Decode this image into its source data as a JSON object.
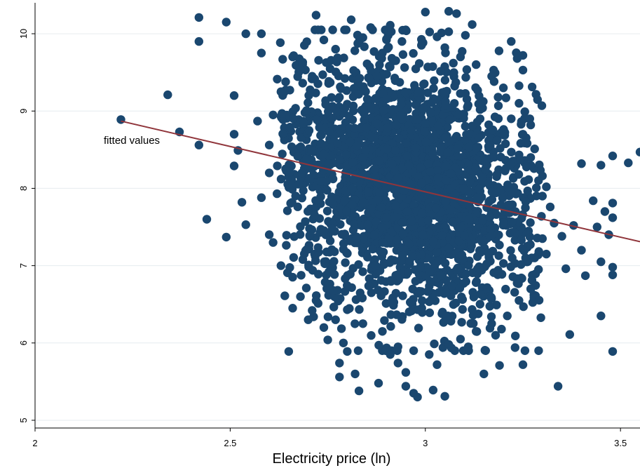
{
  "chart_data": {
    "type": "scatter",
    "title": "",
    "xlabel": "Electricity price (ln)",
    "ylabel": "",
    "xlim": [
      2.0,
      3.55
    ],
    "ylim": [
      4.9,
      10.4
    ],
    "xticks": [
      2,
      2.5,
      3,
      3.5
    ],
    "xtick_labels": [
      "2",
      "2.5",
      "3",
      "3.5"
    ],
    "yticks": [
      5,
      6,
      7,
      8,
      9,
      10
    ],
    "ytick_labels": [
      "5",
      "6",
      "7",
      "8",
      "9",
      "10"
    ],
    "grid": true,
    "colors": {
      "points": "#1a476f",
      "fit": "#90353b",
      "grid": "#e6ebef"
    },
    "fit_line": {
      "label": "fitted values",
      "x": [
        2.22,
        3.55
      ],
      "y": [
        8.87,
        7.31
      ]
    },
    "series": [
      {
        "name": "",
        "points": [
          [
            2.22,
            8.89
          ],
          [
            2.34,
            9.21
          ],
          [
            2.37,
            8.73
          ],
          [
            2.42,
            10.21
          ],
          [
            2.42,
            9.9
          ],
          [
            2.42,
            8.56
          ],
          [
            2.44,
            7.6
          ],
          [
            2.49,
            10.15
          ],
          [
            2.49,
            7.37
          ],
          [
            2.51,
            9.2
          ],
          [
            2.51,
            8.7
          ],
          [
            2.51,
            8.29
          ],
          [
            2.52,
            8.49
          ],
          [
            2.53,
            7.82
          ],
          [
            2.54,
            10.0
          ],
          [
            2.54,
            7.53
          ],
          [
            2.57,
            8.87
          ],
          [
            2.58,
            10.0
          ],
          [
            2.58,
            9.75
          ],
          [
            2.58,
            7.88
          ],
          [
            2.6,
            8.56
          ],
          [
            2.6,
            7.4
          ],
          [
            2.62,
            7.93
          ],
          [
            2.64,
            6.61
          ],
          [
            2.65,
            5.89
          ],
          [
            2.66,
            6.45
          ],
          [
            2.7,
            6.3
          ],
          [
            2.72,
            10.24
          ],
          [
            2.75,
            6.04
          ],
          [
            2.78,
            5.74
          ],
          [
            2.8,
            5.89
          ],
          [
            2.8,
            6.43
          ],
          [
            2.81,
            10.18
          ],
          [
            2.83,
            5.38
          ],
          [
            2.86,
            10.08
          ],
          [
            2.88,
            5.48
          ],
          [
            2.91,
            10.11
          ],
          [
            2.93,
            5.74
          ],
          [
            2.95,
            5.44
          ],
          [
            2.97,
            5.35
          ],
          [
            2.98,
            5.3
          ],
          [
            3.0,
            10.28
          ],
          [
            3.02,
            5.39
          ],
          [
            3.05,
            5.31
          ],
          [
            3.06,
            10.29
          ],
          [
            3.08,
            10.26
          ],
          [
            3.12,
            10.12
          ],
          [
            3.15,
            5.6
          ],
          [
            3.19,
            5.71
          ],
          [
            3.22,
            9.9
          ],
          [
            3.23,
            5.94
          ],
          [
            3.25,
            5.72
          ],
          [
            3.25,
            9.72
          ],
          [
            3.25,
            9.53
          ],
          [
            3.27,
            8.82
          ],
          [
            3.28,
            8.51
          ],
          [
            3.3,
            8.16
          ],
          [
            3.31,
            8.02
          ],
          [
            3.32,
            7.76
          ],
          [
            3.33,
            7.55
          ],
          [
            3.34,
            5.44
          ],
          [
            3.35,
            7.38
          ],
          [
            3.36,
            6.96
          ],
          [
            3.37,
            6.11
          ],
          [
            3.38,
            7.52
          ],
          [
            3.4,
            8.32
          ],
          [
            3.4,
            7.2
          ],
          [
            3.41,
            6.87
          ],
          [
            3.43,
            7.84
          ],
          [
            3.44,
            7.5
          ],
          [
            3.45,
            8.3
          ],
          [
            3.45,
            7.05
          ],
          [
            3.45,
            6.35
          ],
          [
            3.46,
            7.7
          ],
          [
            3.47,
            7.4
          ],
          [
            3.48,
            8.42
          ],
          [
            3.48,
            7.81
          ],
          [
            3.48,
            7.62
          ],
          [
            3.48,
            6.98
          ],
          [
            3.48,
            6.88
          ],
          [
            3.48,
            5.89
          ],
          [
            3.52,
            8.33
          ],
          [
            3.55,
            8.47
          ],
          [
            2.66,
            9.7
          ],
          [
            2.69,
            9.85
          ],
          [
            2.71,
            9.45
          ],
          [
            2.74,
            9.92
          ],
          [
            2.77,
            9.8
          ],
          [
            2.84,
            9.95
          ],
          [
            2.89,
            9.75
          ],
          [
            2.94,
            9.9
          ],
          [
            2.99,
            9.85
          ],
          [
            3.03,
            9.96
          ],
          [
            3.05,
            9.82
          ],
          [
            3.09,
            9.7
          ],
          [
            3.13,
            9.6
          ],
          [
            3.17,
            9.45
          ],
          [
            3.2,
            9.3
          ],
          [
            3.24,
            9.1
          ],
          [
            2.63,
            9.25
          ],
          [
            2.61,
            8.95
          ],
          [
            2.6,
            8.2
          ],
          [
            2.61,
            7.3
          ],
          [
            2.63,
            7.0
          ],
          [
            2.66,
            6.85
          ],
          [
            2.68,
            6.6
          ],
          [
            2.72,
            6.55
          ],
          [
            2.74,
            6.2
          ],
          [
            2.77,
            6.3
          ],
          [
            2.79,
            6.0
          ],
          [
            2.84,
            6.25
          ],
          [
            2.89,
            6.15
          ],
          [
            2.93,
            5.95
          ],
          [
            2.97,
            5.9
          ],
          [
            3.01,
            5.85
          ],
          [
            3.06,
            5.98
          ],
          [
            3.09,
            6.05
          ],
          [
            3.13,
            6.15
          ],
          [
            3.17,
            6.25
          ],
          [
            3.21,
            6.35
          ],
          [
            3.24,
            6.55
          ],
          [
            3.27,
            6.7
          ],
          [
            3.29,
            6.95
          ],
          [
            3.31,
            7.15
          ],
          [
            3.22,
            8.9
          ],
          [
            3.25,
            8.7
          ],
          [
            3.27,
            8.4
          ],
          [
            3.29,
            8.1
          ],
          [
            3.3,
            7.9
          ],
          [
            3.3,
            7.35
          ],
          [
            3.28,
            7.1
          ],
          [
            2.82,
            5.6
          ],
          [
            2.95,
            5.62
          ],
          [
            3.03,
            5.72
          ],
          [
            2.91,
            5.85
          ],
          [
            2.78,
            5.56
          ],
          [
            3.11,
            5.95
          ],
          [
            3.18,
            6.1
          ],
          [
            2.71,
            6.42
          ]
        ]
      }
    ]
  }
}
